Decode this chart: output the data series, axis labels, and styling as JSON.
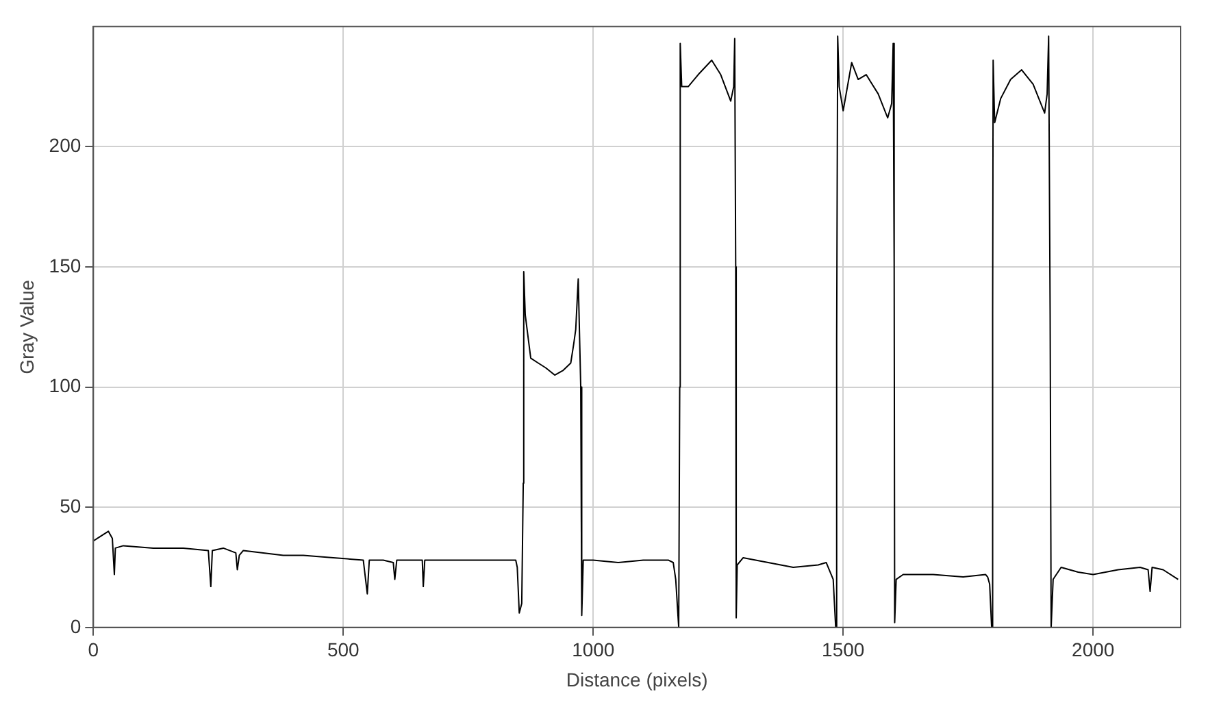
{
  "chart_data": {
    "type": "line",
    "xlabel": "Distance (pixels)",
    "ylabel": "Gray Value",
    "xlim": [
      0,
      2175
    ],
    "ylim": [
      0,
      250
    ],
    "xticks": [
      0,
      500,
      1000,
      1500,
      2000
    ],
    "yticks": [
      0,
      50,
      100,
      150,
      200
    ],
    "grid": true,
    "legend": false,
    "marker": "none",
    "line_style": "solid",
    "series": [
      {
        "color": "#000000",
        "x": [
          0,
          15,
          30,
          38,
          42,
          44,
          60,
          120,
          180,
          230,
          235,
          238,
          260,
          285,
          288,
          292,
          300,
          340,
          380,
          420,
          480,
          540,
          548,
          552,
          580,
          600,
          603,
          607,
          640,
          658,
          660,
          663,
          700,
          760,
          800,
          845,
          848,
          852,
          857,
          860,
          861,
          864,
          875,
          890,
          905,
          923,
          940,
          955,
          961,
          965,
          970,
          975,
          977,
          980,
          1000,
          1050,
          1100,
          1150,
          1160,
          1165,
          1171,
          1173,
          1174,
          1177,
          1190,
          1210,
          1237,
          1255,
          1275,
          1281,
          1283,
          1285,
          1286,
          1288,
          1300,
          1350,
          1400,
          1450,
          1466,
          1480,
          1485,
          1487,
          1489,
          1492,
          1500,
          1517,
          1530,
          1546,
          1570,
          1589,
          1597,
          1600,
          1602,
          1603,
          1606,
          1620,
          1680,
          1740,
          1785,
          1789,
          1793,
          1797,
          1799,
          1800,
          1803,
          1815,
          1835,
          1857,
          1880,
          1903,
          1908,
          1911,
          1914,
          1916,
          1920,
          1936,
          1970,
          2000,
          2050,
          2094,
          2110,
          2114,
          2118,
          2140,
          2170
        ],
        "values": [
          36,
          38,
          40,
          37,
          22,
          33,
          34,
          33,
          33,
          32,
          17,
          32,
          33,
          31,
          24,
          30,
          32,
          31,
          30,
          30,
          29,
          28,
          14,
          28,
          28,
          27,
          20,
          28,
          28,
          28,
          17,
          28,
          28,
          28,
          28,
          28,
          25,
          6,
          10,
          60,
          148,
          130,
          112,
          110,
          108,
          105,
          107,
          110,
          118,
          124,
          145,
          100,
          5,
          28,
          28,
          27,
          28,
          28,
          27,
          20,
          0,
          100,
          243,
          225,
          225,
          230,
          236,
          230,
          219,
          225,
          245,
          150,
          4,
          26,
          29,
          27,
          25,
          26,
          27,
          20,
          0,
          120,
          246,
          225,
          215,
          235,
          228,
          230,
          222,
          212,
          218,
          243,
          150,
          2,
          20,
          22,
          22,
          21,
          22,
          21,
          18,
          0,
          130,
          236,
          210,
          220,
          228,
          232,
          226,
          214,
          222,
          246,
          130,
          0,
          20,
          25,
          23,
          22,
          24,
          25,
          24,
          15,
          25,
          24,
          20
        ]
      }
    ]
  }
}
